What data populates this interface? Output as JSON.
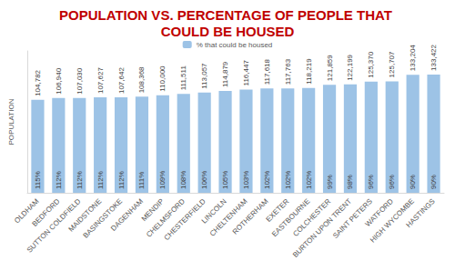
{
  "chart_data": {
    "type": "bar",
    "title": "POPULATION VS. PERCENTAGE OF PEOPLE THAT COULD BE HOUSED",
    "y_label": "POPULATION",
    "categories": [
      "OLDHAM",
      "BEDFORD",
      "SUTTON COLDFIELD",
      "MAIDSTONE",
      "BASINGSTOKE",
      "DAGENHAM",
      "MENDIP",
      "CHELMSFORD",
      "CHESTERFIELD",
      "LINCOLN",
      "CHELTENHAM",
      "ROTHERHAM",
      "EXETER",
      "EASTBOURNE",
      "COLCHESTER",
      "BURTON UPON TRENT",
      "SAINT PETERS",
      "WATFORD",
      "HIGH WYCOMBE",
      "HASTINGS"
    ],
    "series": [
      {
        "color": "#9dc3e6",
        "values": [
          104782,
          106940,
          107030,
          107627,
          107642,
          108368,
          110000,
          111511,
          113057,
          114879,
          116447,
          117618,
          117763,
          118219,
          121859,
          122199,
          125370,
          125707,
          133204,
          133422
        ],
        "value_labels": [
          "104,782",
          "106,940",
          "107,030",
          "107,627",
          "107,642",
          "108,368",
          "110,000",
          "111,511",
          "113,057",
          "114,879",
          "116,447",
          "117,618",
          "117,763",
          "118,219",
          "121,859",
          "122,199",
          "125,370",
          "125,707",
          "133,204",
          "133,422"
        ]
      },
      {
        "name": "% that could be housed",
        "color": "#9dc3e6",
        "values": [
          1.15,
          1.12,
          1.12,
          1.12,
          1.12,
          1.11,
          1.09,
          1.08,
          1.06,
          1.05,
          1.03,
          1.02,
          1.02,
          1.02,
          0.99,
          0.98,
          0.96,
          0.96,
          0.9,
          0.9
        ],
        "value_labels": [
          "115%",
          "112%",
          "112%",
          "112%",
          "112%",
          "111%",
          "109%",
          "108%",
          "106%",
          "105%",
          "103%",
          "102%",
          "102%",
          "102%",
          "99%",
          "98%",
          "96%",
          "96%",
          "90%",
          "90%"
        ]
      }
    ],
    "ylim": [
      0,
      160000
    ],
    "grid": false,
    "legend": "top",
    "data_labels": true,
    "tick_labels": "x"
  }
}
